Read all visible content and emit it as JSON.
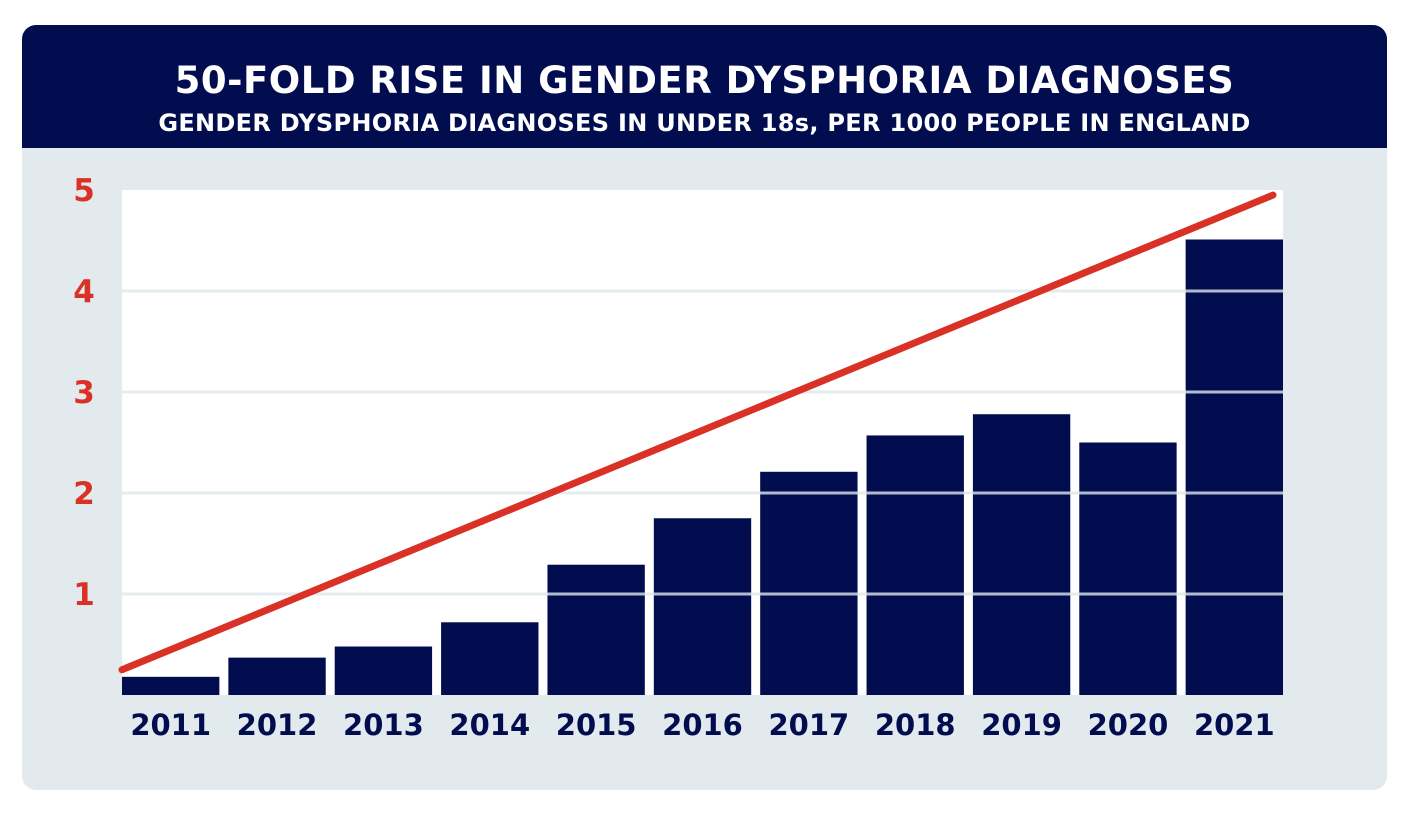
{
  "chart_data": {
    "type": "bar",
    "title": "50-FOLD RISE IN GENDER DYSPHORIA DIAGNOSES",
    "subtitle": "GENDER DYSPHORIA DIAGNOSES IN UNDER 18s, PER 1000 PEOPLE IN ENGLAND",
    "categories": [
      "2011",
      "2012",
      "2013",
      "2014",
      "2015",
      "2016",
      "2017",
      "2018",
      "2019",
      "2020",
      "2021"
    ],
    "values": [
      0.18,
      0.37,
      0.48,
      0.72,
      1.29,
      1.75,
      2.21,
      2.57,
      2.78,
      2.5,
      4.51
    ],
    "trend_line": {
      "start": 0.25,
      "end": 4.95
    },
    "yticks": [
      "1",
      "2",
      "3",
      "4",
      "5"
    ],
    "ylim": [
      0,
      5
    ],
    "grid": true,
    "colors": {
      "bars": "#020d4f",
      "trend": "#d93126",
      "ytick": "#d93126",
      "header": "#020d4f",
      "background": "#e2eaee"
    }
  }
}
